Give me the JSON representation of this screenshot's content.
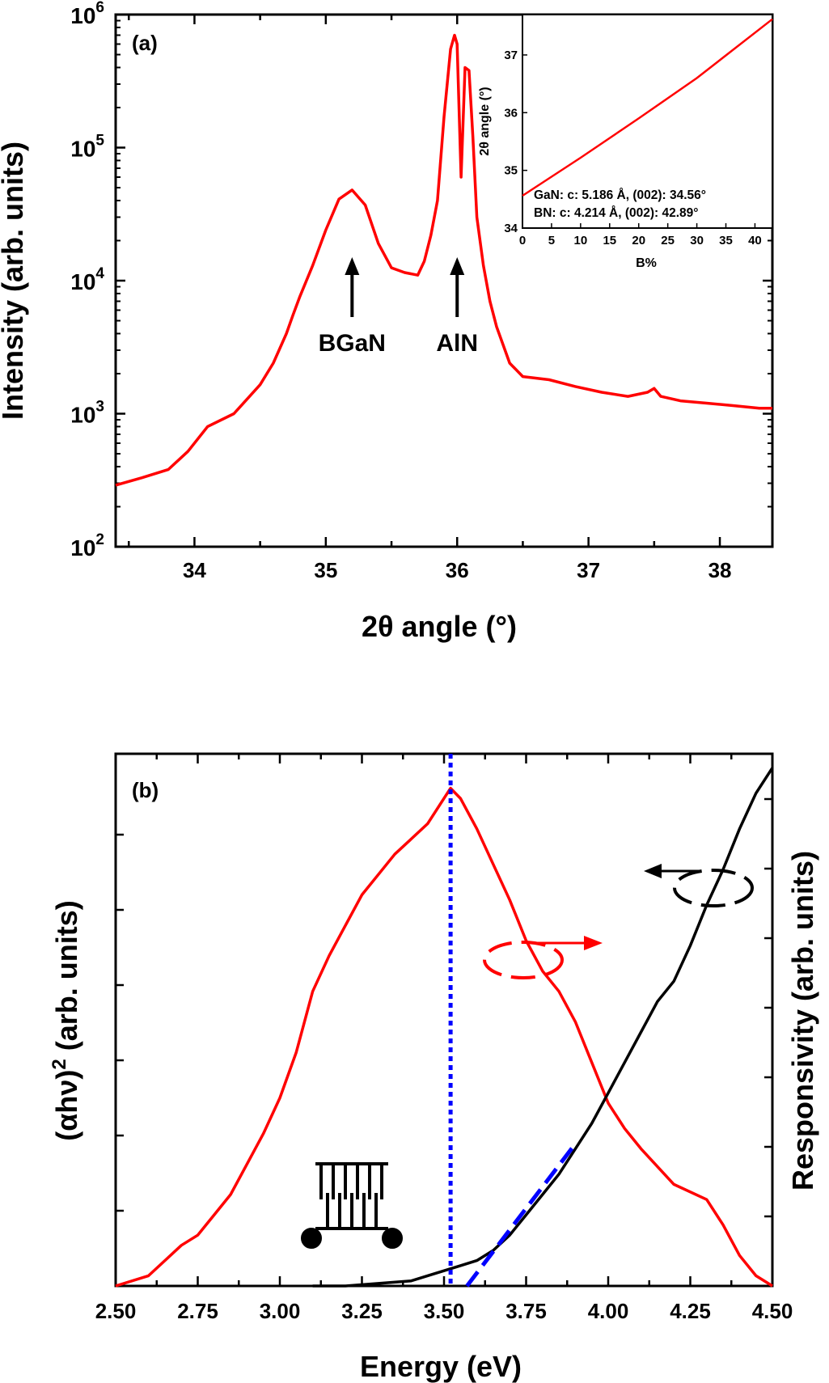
{
  "chart_data": [
    {
      "type": "line",
      "panel_label": "(a)",
      "xlabel": "2θ angle (°)",
      "ylabel": "Intensity (arb. units)",
      "xlim": [
        33.4,
        38.4
      ],
      "ylim": [
        100,
        1000000
      ],
      "y_scale": "log",
      "x_ticks": [
        "34",
        "35",
        "36",
        "37",
        "38"
      ],
      "y_ticks": [
        {
          "base": "10",
          "exp": "2"
        },
        {
          "base": "10",
          "exp": "3"
        },
        {
          "base": "10",
          "exp": "4"
        },
        {
          "base": "10",
          "exp": "5"
        },
        {
          "base": "10",
          "exp": "6"
        }
      ],
      "series_color": "#ff0000",
      "series": [
        {
          "x": [
            33.4,
            33.6,
            33.8,
            33.95,
            34.1,
            34.3,
            34.5,
            34.6,
            34.7,
            34.75,
            34.8,
            34.9,
            35.0,
            35.1,
            35.2,
            35.3,
            35.4,
            35.5,
            35.6,
            35.7,
            35.75,
            35.8,
            35.85,
            35.9,
            35.95,
            35.98,
            36.0,
            36.03,
            36.06,
            36.09,
            36.12,
            36.15,
            36.2,
            36.25,
            36.3,
            36.4,
            36.5,
            36.7,
            36.9,
            37.1,
            37.3,
            37.45,
            37.5,
            37.55,
            37.7,
            37.9,
            38.1,
            38.3,
            38.4
          ],
          "y": [
            290,
            330,
            380,
            520,
            800,
            1000,
            1650,
            2400,
            4000,
            5500,
            7500,
            13000,
            24000,
            41000,
            48000,
            37000,
            19000,
            12500,
            11500,
            11000,
            14000,
            22000,
            40000,
            170000,
            550000,
            700000,
            600000,
            60000,
            400000,
            380000,
            120000,
            30000,
            13000,
            7000,
            4500,
            2400,
            1900,
            1800,
            1600,
            1450,
            1350,
            1450,
            1550,
            1350,
            1250,
            1200,
            1150,
            1100,
            1100
          ]
        }
      ],
      "annotations": [
        {
          "text": "BGaN",
          "x": 35.2,
          "y": 8000
        },
        {
          "text": "AlN",
          "x": 36.0,
          "y": 8000
        }
      ],
      "inset": {
        "type": "line",
        "xlabel": "B%",
        "ylabel": "2θ angle (°)",
        "xlim": [
          0,
          43
        ],
        "ylim": [
          34,
          37.7
        ],
        "x_ticks": [
          "0",
          "5",
          "10",
          "15",
          "20",
          "25",
          "30",
          "35",
          "40"
        ],
        "y_ticks": [
          "34",
          "35",
          "36",
          "37"
        ],
        "series": [
          {
            "x": [
              0,
              10,
              20,
              30,
              43
            ],
            "y": [
              34.56,
              35.22,
              35.9,
              36.6,
              37.62
            ]
          }
        ],
        "notes": [
          "GaN: c: 5.186 Å, (002): 34.56°",
          "BN: c: 4.214 Å, (002): 42.89°"
        ]
      }
    },
    {
      "type": "line",
      "panel_label": "(b)",
      "xlabel": "Energy (eV)",
      "ylabel_left": {
        "pre": "(αhν)",
        "sup": "2",
        "post": " (arb. units)"
      },
      "ylabel_right": "Responsivity (arb. units)",
      "xlim": [
        2.5,
        4.5
      ],
      "ylim_left": [
        0,
        1
      ],
      "ylim_right": [
        0,
        1
      ],
      "x_ticks": [
        "2.50",
        "2.75",
        "3.00",
        "3.25",
        "3.50",
        "3.75",
        "4.00",
        "4.25",
        "4.50"
      ],
      "vertical_line_x": 3.52,
      "colors": {
        "responsivity": "#ff0000",
        "absorption": "#000000",
        "vline": "#0000ff",
        "fit": "#0000ff"
      },
      "series": [
        {
          "x": [
            2.5,
            2.6,
            2.65,
            2.7,
            2.75,
            2.8,
            2.85,
            2.9,
            2.95,
            3.0,
            3.05,
            3.1,
            3.15,
            3.2,
            3.25,
            3.3,
            3.35,
            3.4,
            3.45,
            3.5,
            3.52,
            3.55,
            3.6,
            3.65,
            3.7,
            3.75,
            3.8,
            3.85,
            3.9,
            3.95,
            4.0,
            4.05,
            4.1,
            4.2,
            4.3,
            4.35,
            4.4,
            4.45,
            4.5
          ],
          "y": [
            0.0,
            0.02,
            0.05,
            0.08,
            0.1,
            0.14,
            0.18,
            0.24,
            0.3,
            0.37,
            0.46,
            0.58,
            0.65,
            0.71,
            0.77,
            0.81,
            0.85,
            0.88,
            0.91,
            0.96,
            0.98,
            0.96,
            0.9,
            0.83,
            0.76,
            0.68,
            0.62,
            0.58,
            0.52,
            0.44,
            0.36,
            0.31,
            0.27,
            0.2,
            0.17,
            0.12,
            0.06,
            0.02,
            0.0
          ]
        },
        {
          "x": [
            3.1,
            3.2,
            3.3,
            3.4,
            3.45,
            3.5,
            3.55,
            3.6,
            3.65,
            3.7,
            3.75,
            3.8,
            3.85,
            3.9,
            3.95,
            4.0,
            4.05,
            4.1,
            4.15,
            4.2,
            4.25,
            4.3,
            4.35,
            4.4,
            4.45,
            4.5
          ],
          "y": [
            0.0,
            0.0,
            0.005,
            0.01,
            0.02,
            0.03,
            0.04,
            0.05,
            0.07,
            0.1,
            0.14,
            0.18,
            0.22,
            0.27,
            0.32,
            0.38,
            0.44,
            0.5,
            0.56,
            0.6,
            0.67,
            0.75,
            0.82,
            0.9,
            0.97,
            1.02
          ]
        },
        {
          "x": [
            3.57,
            3.9
          ],
          "y": [
            0.0,
            0.28
          ]
        }
      ]
    }
  ]
}
